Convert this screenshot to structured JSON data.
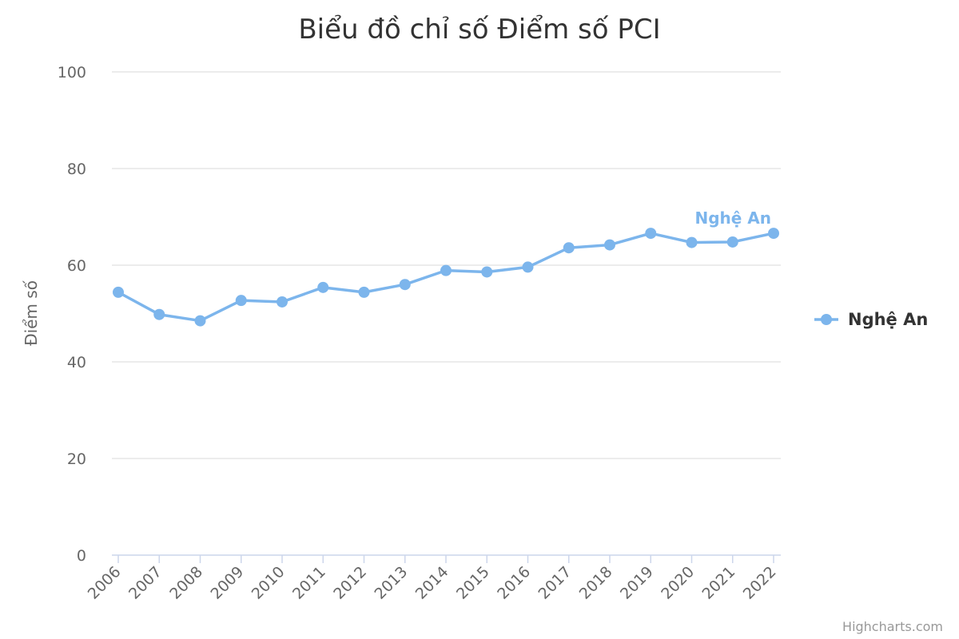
{
  "chart_data": {
    "type": "line",
    "title": "Biểu đồ chỉ số Điểm số PCI",
    "ylabel": "Điểm số",
    "xlabel": "",
    "x": [
      "2006",
      "2007",
      "2008",
      "2009",
      "2010",
      "2011",
      "2012",
      "2013",
      "2014",
      "2015",
      "2016",
      "2017",
      "2018",
      "2019",
      "2020",
      "2021",
      "2022"
    ],
    "ylim": [
      0,
      100
    ],
    "yticks": [
      0,
      20,
      40,
      60,
      80,
      100
    ],
    "grid": true,
    "legend": "right",
    "series": [
      {
        "name": "Nghệ An",
        "color": "#7cb5ec",
        "values": [
          54.4,
          49.8,
          48.5,
          52.7,
          52.4,
          55.4,
          54.4,
          56.0,
          58.9,
          58.6,
          59.6,
          63.6,
          64.2,
          66.6,
          64.7,
          64.8,
          66.6
        ]
      }
    ],
    "credits": "Highcharts.com"
  }
}
